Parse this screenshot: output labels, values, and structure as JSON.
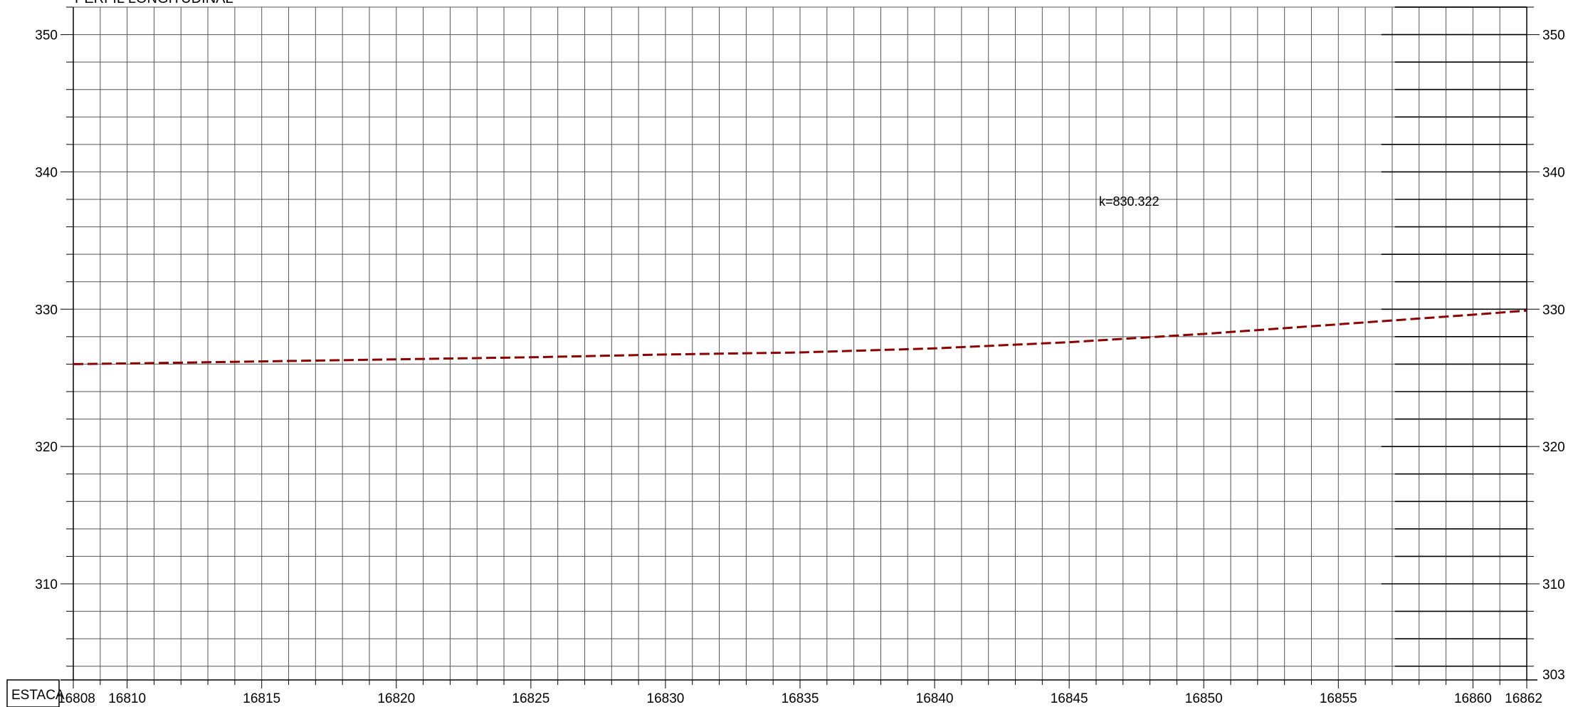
{
  "chart_data": {
    "type": "line",
    "title": "PERFIL LONGITUDINAL",
    "row_label": "ESTACA",
    "xlim": [
      16808,
      16862
    ],
    "ylim": [
      303,
      352
    ],
    "x_tick_labels": [
      "16808",
      "16810",
      "16815",
      "16820",
      "16825",
      "16830",
      "16835",
      "16840",
      "16845",
      "16850",
      "16855",
      "16860",
      "16862"
    ],
    "y_tick_labels_left": [
      "350",
      "340",
      "330",
      "320",
      "310"
    ],
    "y_tick_labels_right": [
      "350",
      "340",
      "330",
      "320",
      "310",
      "303"
    ],
    "grid": true,
    "annotation": "k=830.322",
    "series": [
      {
        "color": "#8b0000",
        "dashed": true,
        "x": [
          16808,
          16810,
          16815,
          16820,
          16825,
          16830,
          16835,
          16840,
          16845,
          16850,
          16855,
          16860,
          16862
        ],
        "y": [
          326.0,
          326.05,
          326.2,
          326.35,
          326.5,
          326.7,
          326.85,
          327.15,
          327.6,
          328.2,
          328.9,
          329.6,
          329.9
        ]
      }
    ]
  }
}
